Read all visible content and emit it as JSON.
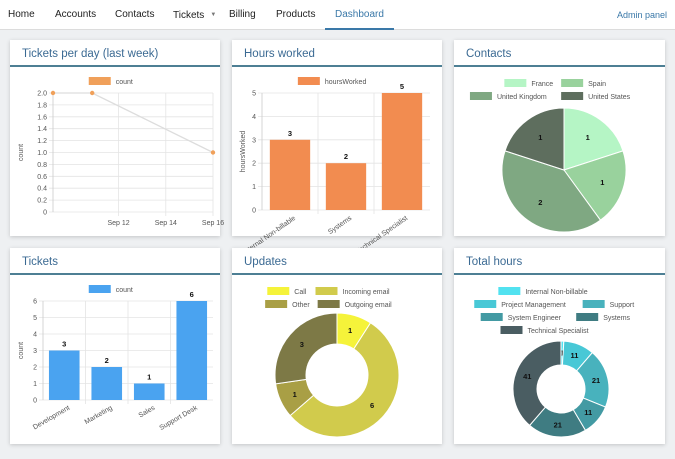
{
  "nav": {
    "items": [
      "Home",
      "Accounts",
      "Contacts",
      "Tickets",
      "Billing",
      "Products",
      "Dashboard"
    ],
    "admin_label": "Admin panel"
  },
  "cards": {
    "tickets_per_day": "Tickets per day (last week)",
    "hours_worked": "Hours worked",
    "contacts": "Contacts",
    "tickets": "Tickets",
    "updates": "Updates",
    "total_hours": "Total hours"
  },
  "chart_data": [
    {
      "id": "tickets_per_day",
      "type": "line",
      "x": [
        "Sep 10",
        "Sep 11",
        "Sep 16"
      ],
      "xticks": [
        "Sep 12",
        "Sep 14",
        "Sep 16"
      ],
      "series": [
        {
          "name": "count",
          "values": [
            2,
            2,
            1
          ],
          "color": "#f0a05a"
        }
      ],
      "ylabel": "count",
      "ylim": [
        0,
        2
      ],
      "yticks": [
        "0",
        "0.2",
        "0.4",
        "0.6",
        "0.8",
        "1.0",
        "1.2",
        "1.4",
        "1.6",
        "1.8",
        "2.0"
      ],
      "grid": true,
      "legend": "top"
    },
    {
      "id": "hours_worked",
      "type": "bar",
      "categories": [
        "Internal Non-billable",
        "Systems",
        "Technical Specialist"
      ],
      "series": [
        {
          "name": "hoursWorked",
          "values": [
            3,
            2,
            5
          ],
          "color": "#f28c50"
        }
      ],
      "ylabel": "hoursWorked",
      "ylim": [
        0,
        5
      ],
      "yticks": [
        "0",
        "1",
        "2",
        "3",
        "4",
        "5"
      ],
      "grid": true,
      "legend": "top"
    },
    {
      "id": "contacts",
      "type": "pie",
      "labels": [
        "France",
        "Spain",
        "United Kingdom",
        "United States"
      ],
      "values": [
        1,
        1,
        2,
        1
      ],
      "colors": [
        "#b5f5c5",
        "#99d29d",
        "#7fa882",
        "#5e6e5e"
      ],
      "legend": "top"
    },
    {
      "id": "tickets",
      "type": "bar",
      "categories": [
        "Development",
        "Marketing",
        "Sales",
        "Support Desk"
      ],
      "series": [
        {
          "name": "count",
          "values": [
            3,
            2,
            1,
            6
          ],
          "color": "#4aa3f0"
        }
      ],
      "ylabel": "count",
      "ylim": [
        0,
        6
      ],
      "yticks": [
        "0",
        "1",
        "2",
        "3",
        "4",
        "5",
        "6"
      ],
      "grid": true,
      "legend": "top"
    },
    {
      "id": "updates",
      "type": "pie",
      "donut": true,
      "labels": [
        "Call",
        "Incoming email",
        "Other",
        "Outgoing email"
      ],
      "values": [
        1,
        6,
        1,
        3
      ],
      "colors": [
        "#f5f33a",
        "#d1cb4c",
        "#a99f45",
        "#7d7946"
      ],
      "legend": "top"
    },
    {
      "id": "total_hours",
      "type": "pie",
      "donut": true,
      "labels": [
        "Internal Non-billable",
        "Project Management",
        "Support",
        "System Engineer",
        "Systems",
        "Technical Specialist"
      ],
      "values": [
        1,
        11,
        21,
        11,
        21,
        41
      ],
      "colors": [
        "#52e2f0",
        "#48c8d6",
        "#48b2bd",
        "#439aa3",
        "#3f7c82",
        "#4a5d62"
      ],
      "legend": "top"
    }
  ]
}
